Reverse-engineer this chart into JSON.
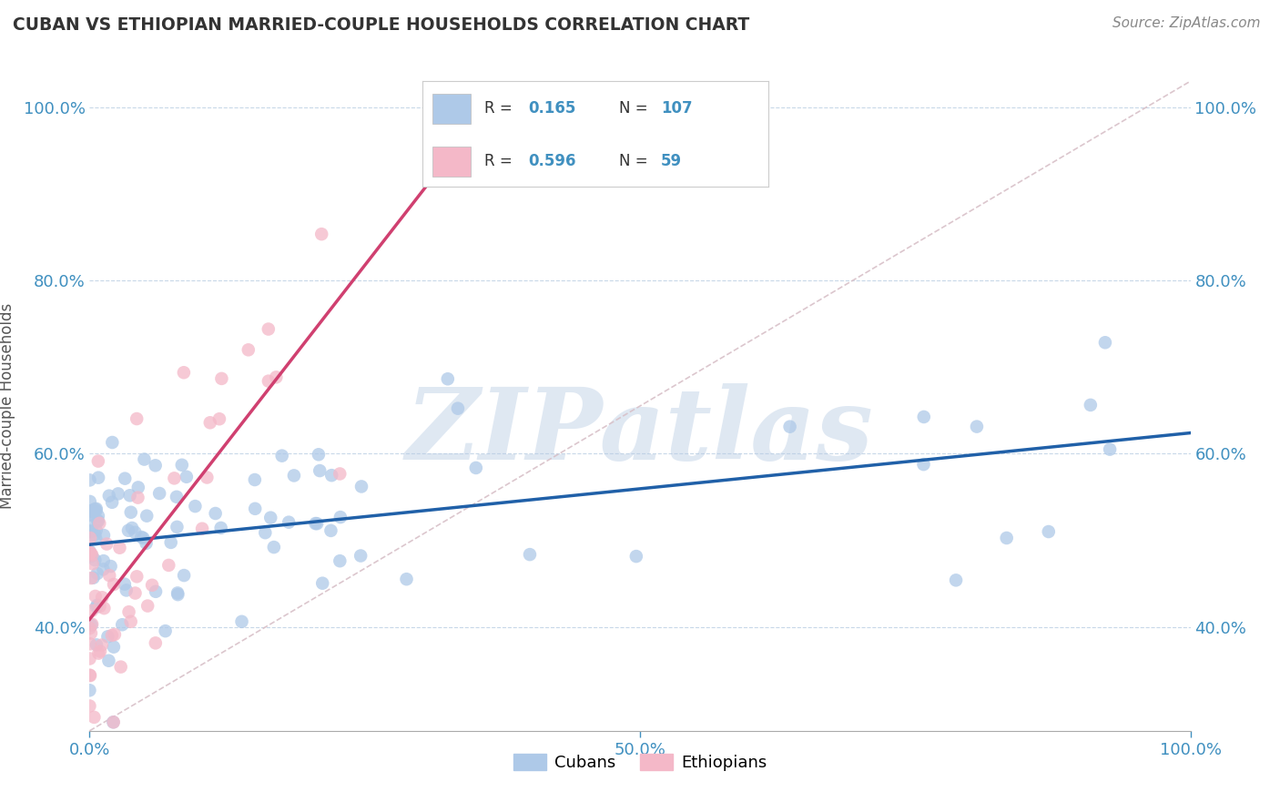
{
  "title": "CUBAN VS ETHIOPIAN MARRIED-COUPLE HOUSEHOLDS CORRELATION CHART",
  "source_text": "Source: ZipAtlas.com",
  "ylabel": "Married-couple Households",
  "xlim": [
    0.0,
    1.0
  ],
  "ylim": [
    0.28,
    1.03
  ],
  "y_ticks": [
    0.4,
    0.6,
    0.8,
    1.0
  ],
  "cuban_R": 0.165,
  "cuban_N": 107,
  "ethiopian_R": 0.596,
  "ethiopian_N": 59,
  "cuban_color": "#aec9e8",
  "ethiopian_color": "#f4b8c8",
  "cuban_line_color": "#2060a8",
  "ethiopian_line_color": "#d04070",
  "diag_color": "#d8c0c8",
  "grid_color": "#c8d8e8",
  "watermark": "ZIPatlas",
  "background_color": "#ffffff",
  "tick_color": "#4090c0",
  "legend_text_color": "#333333",
  "legend_val_color": "#4090c0",
  "title_color": "#333333",
  "source_color": "#888888",
  "ylabel_color": "#555555"
}
